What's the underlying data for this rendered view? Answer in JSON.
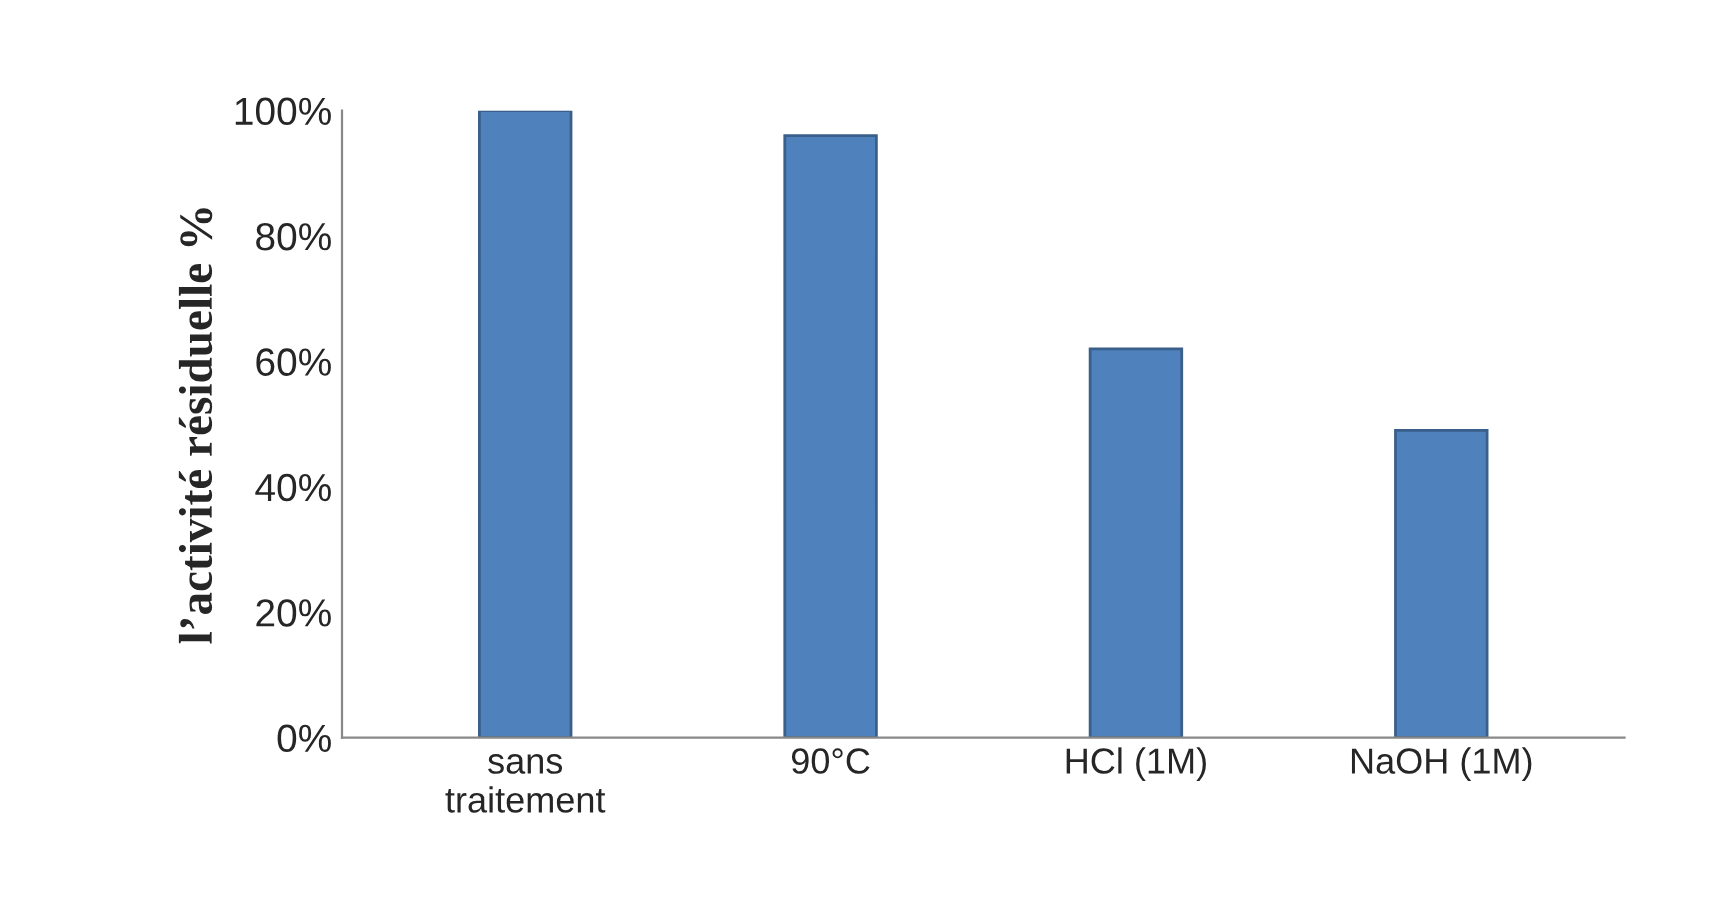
{
  "chart_data": {
    "type": "bar",
    "ylabel": "l’activité résiduelle %",
    "categories": [
      "sans\ntraitement",
      "90°C",
      "HCl (1M)",
      "NaOH (1M)"
    ],
    "values": [
      100,
      96,
      62,
      49
    ],
    "color": "#4f81bd",
    "ylim": [
      0,
      100
    ],
    "yticks": [
      {
        "value": 0,
        "label": "0%"
      },
      {
        "value": 20,
        "label": "20%"
      },
      {
        "value": 40,
        "label": "40%"
      },
      {
        "value": 60,
        "label": "60%"
      },
      {
        "value": 80,
        "label": "80%"
      },
      {
        "value": 100,
        "label": "100%"
      }
    ],
    "grid": false
  }
}
